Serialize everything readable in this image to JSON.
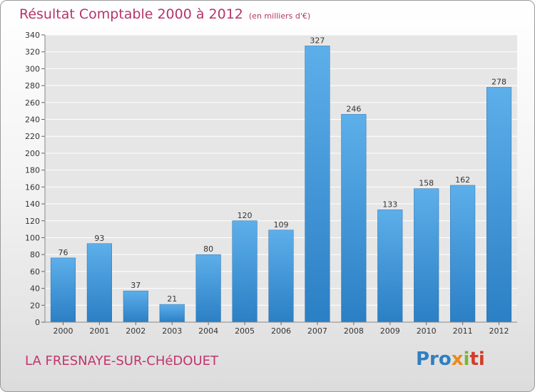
{
  "header": {
    "title": "Résultat Comptable 2000 à 2012",
    "unit": "(en milliers d'€)"
  },
  "footer": {
    "commune": "LA FRESNAYE-SUR-CHéDOUET",
    "brand_parts": [
      "Pro",
      "x",
      "i",
      "ti"
    ]
  },
  "colors": {
    "title": "#b5346a",
    "bar_light": "#5dafea",
    "bar_dark": "#2b7fc4",
    "brand_blue": "#2f7fc1",
    "brand_orange": "#e98a1c",
    "brand_green": "#7bb72f",
    "brand_red": "#d63b2b"
  },
  "chart_data": {
    "type": "bar",
    "title": "Résultat Comptable 2000 à 2012",
    "subtitle": "(en milliers d'€)",
    "xlabel": "",
    "ylabel": "",
    "categories": [
      "2000",
      "2001",
      "2002",
      "2003",
      "2004",
      "2005",
      "2006",
      "2007",
      "2008",
      "2009",
      "2010",
      "2011",
      "2012"
    ],
    "values": [
      76,
      93,
      37,
      21,
      80,
      120,
      109,
      327,
      246,
      133,
      158,
      162,
      278
    ],
    "ylim": [
      0,
      340
    ],
    "yticks": [
      0,
      20,
      40,
      60,
      80,
      100,
      120,
      140,
      160,
      180,
      200,
      220,
      240,
      260,
      280,
      300,
      320,
      340
    ],
    "grid": true,
    "legend": "none",
    "data_labels": true
  }
}
